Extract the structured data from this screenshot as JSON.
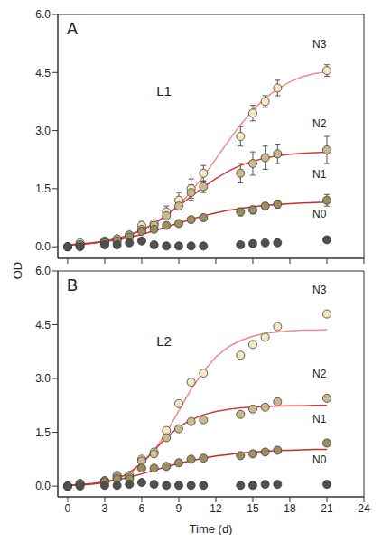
{
  "y_label": "OD",
  "chart_data": [
    {
      "type": "scatter",
      "title": "A",
      "annotation": "L1",
      "tick_labels": "y",
      "xlim": [
        -0.8,
        24
      ],
      "xticks": [
        0,
        3,
        6,
        9,
        12,
        15,
        18,
        21,
        24
      ],
      "ylim": [
        -0.3,
        6
      ],
      "yticks": [
        {
          "value": 0,
          "label": "0.0"
        },
        {
          "value": 1.5,
          "label": "1.5"
        },
        {
          "value": 3,
          "label": "3.0"
        },
        {
          "value": 4.5,
          "label": "4.5"
        },
        {
          "value": 6,
          "label": "6.0"
        }
      ],
      "x": [
        0,
        1,
        3,
        4,
        5,
        6,
        7,
        8,
        9,
        10,
        11,
        14,
        15,
        16,
        17,
        21
      ],
      "series": [
        {
          "name": "N3",
          "color": "#f3e8c2",
          "marker": "circle",
          "values": [
            0.0,
            0.1,
            0.15,
            0.2,
            0.3,
            0.55,
            0.6,
            0.9,
            1.2,
            1.5,
            1.9,
            2.85,
            3.45,
            3.75,
            4.1,
            4.55
          ],
          "errors": [
            0,
            0,
            0,
            0,
            0.05,
            0.1,
            0.05,
            0.15,
            0.2,
            0.25,
            0.2,
            0.25,
            0.2,
            0.15,
            0.2,
            0.15
          ],
          "fit": {
            "color": "#f08a8a",
            "line_style": "solid",
            "x": [
              0,
              1,
              2,
              3,
              4,
              5,
              6,
              7,
              8,
              9,
              10,
              11,
              12,
              13,
              14,
              15,
              16,
              17,
              18,
              19,
              20,
              21
            ],
            "values": [
              0.05,
              0.08,
              0.11,
              0.15,
              0.22,
              0.3,
              0.42,
              0.58,
              0.8,
              1.08,
              1.42,
              1.82,
              2.27,
              2.72,
              3.15,
              3.53,
              3.84,
              4.08,
              4.26,
              4.39,
              4.47,
              4.52
            ]
          }
        },
        {
          "name": "N2",
          "color": "#c9b98c",
          "marker": "circle",
          "values": [
            0.0,
            0.05,
            0.12,
            0.2,
            0.3,
            0.45,
            0.55,
            0.8,
            1.05,
            1.4,
            1.55,
            1.9,
            2.15,
            2.3,
            2.4,
            2.5
          ],
          "errors": [
            0,
            0,
            0,
            0,
            0.05,
            0.05,
            0.05,
            0.1,
            0.1,
            0.2,
            0.15,
            0.25,
            0.3,
            0.3,
            0.25,
            0.35
          ],
          "fit": {
            "color": "#d93b3b",
            "line_style": "solid",
            "x": [
              0,
              1,
              2,
              3,
              4,
              5,
              6,
              7,
              8,
              9,
              10,
              11,
              12,
              13,
              14,
              15,
              16,
              17,
              18,
              19,
              20,
              21
            ],
            "values": [
              0.04,
              0.06,
              0.09,
              0.14,
              0.2,
              0.3,
              0.43,
              0.6,
              0.81,
              1.05,
              1.3,
              1.54,
              1.76,
              1.95,
              2.1,
              2.21,
              2.29,
              2.35,
              2.39,
              2.41,
              2.43,
              2.44
            ]
          }
        },
        {
          "name": "N1",
          "color": "#9d8e5e",
          "marker": "circle",
          "values": [
            0.0,
            0.05,
            0.1,
            0.15,
            0.25,
            0.4,
            0.45,
            0.55,
            0.6,
            0.7,
            0.75,
            0.9,
            0.95,
            1.05,
            1.1,
            1.2
          ],
          "errors": [
            0,
            0,
            0,
            0,
            0.03,
            0.05,
            0.05,
            0.05,
            0.05,
            0.05,
            0.05,
            0.1,
            0.1,
            0.08,
            0.1,
            0.15
          ],
          "fit": {
            "color": "#c0302e",
            "line_style": "solid",
            "x": [
              0,
              1,
              2,
              3,
              4,
              5,
              6,
              7,
              8,
              9,
              10,
              11,
              12,
              13,
              14,
              15,
              16,
              17,
              18,
              19,
              20,
              21
            ],
            "values": [
              0.04,
              0.06,
              0.09,
              0.13,
              0.18,
              0.24,
              0.32,
              0.41,
              0.51,
              0.61,
              0.71,
              0.8,
              0.87,
              0.94,
              0.99,
              1.03,
              1.07,
              1.09,
              1.11,
              1.13,
              1.14,
              1.15
            ]
          }
        },
        {
          "name": "N0",
          "color": "#505050",
          "marker": "circle",
          "values": [
            0.0,
            0.0,
            0.05,
            0.05,
            0.1,
            0.15,
            0.05,
            0.02,
            0.02,
            0.02,
            0.02,
            0.05,
            0.08,
            0.1,
            0.1,
            0.18
          ],
          "errors": [
            0,
            0,
            0,
            0,
            0,
            0,
            0,
            0,
            0,
            0,
            0,
            0,
            0,
            0,
            0,
            0
          ]
        }
      ]
    },
    {
      "type": "scatter",
      "title": "B",
      "annotation": "L2",
      "x_label": "Time (d)",
      "xlim": [
        -0.8,
        24
      ],
      "xticks": [
        0,
        3,
        6,
        9,
        12,
        15,
        18,
        21,
        24
      ],
      "ylim": [
        -0.3,
        6
      ],
      "yticks": [
        {
          "value": 0,
          "label": "0.0"
        },
        {
          "value": 1.5,
          "label": "1.5"
        },
        {
          "value": 3,
          "label": "3.0"
        },
        {
          "value": 4.5,
          "label": "4.5"
        },
        {
          "value": 6,
          "label": "6.0"
        }
      ],
      "x": [
        0,
        1,
        3,
        4,
        5,
        6,
        7,
        8,
        9,
        10,
        11,
        14,
        15,
        16,
        17,
        21
      ],
      "series": [
        {
          "name": "N3",
          "color": "#f3e8c2",
          "marker": "circle",
          "values": [
            0.0,
            0.08,
            0.15,
            0.3,
            0.3,
            0.75,
            0.95,
            1.55,
            2.3,
            2.9,
            3.15,
            3.65,
            3.95,
            4.15,
            4.45,
            4.8
          ],
          "fit": {
            "color": "#f08a8a",
            "line_style": "solid",
            "x": [
              0,
              1,
              2,
              3,
              4,
              5,
              6,
              7,
              8,
              9,
              10,
              11,
              12,
              13,
              14,
              15,
              16,
              17,
              18,
              19,
              20,
              21
            ],
            "values": [
              0.02,
              0.04,
              0.07,
              0.12,
              0.2,
              0.35,
              0.6,
              0.98,
              1.5,
              2.1,
              2.7,
              3.2,
              3.6,
              3.88,
              4.06,
              4.18,
              4.26,
              4.3,
              4.33,
              4.35,
              4.35,
              4.36
            ]
          }
        },
        {
          "name": "N2",
          "color": "#c9b98c",
          "marker": "circle",
          "values": [
            0.0,
            0.05,
            0.15,
            0.25,
            0.25,
            0.7,
            0.9,
            1.35,
            1.6,
            1.8,
            1.85,
            2.0,
            2.15,
            2.2,
            2.35,
            2.45
          ],
          "fit": {
            "color": "#d93b3b",
            "line_style": "solid",
            "x": [
              0,
              1,
              2,
              3,
              4,
              5,
              6,
              7,
              8,
              9,
              10,
              11,
              12,
              13,
              14,
              15,
              16,
              17,
              18,
              19,
              20,
              21
            ],
            "values": [
              0.02,
              0.03,
              0.05,
              0.1,
              0.2,
              0.38,
              0.65,
              1.0,
              1.35,
              1.65,
              1.85,
              1.99,
              2.08,
              2.14,
              2.18,
              2.2,
              2.22,
              2.23,
              2.24,
              2.24,
              2.25,
              2.25
            ]
          }
        },
        {
          "name": "N1",
          "color": "#9d8e5e",
          "marker": "circle",
          "values": [
            0.0,
            0.05,
            0.12,
            0.2,
            0.2,
            0.5,
            0.5,
            0.55,
            0.65,
            0.75,
            0.78,
            0.85,
            0.9,
            0.95,
            1.0,
            1.2
          ],
          "fit": {
            "color": "#c0302e",
            "line_style": "solid",
            "x": [
              0,
              1,
              2,
              3,
              4,
              5,
              6,
              7,
              8,
              9,
              10,
              11,
              12,
              13,
              14,
              15,
              16,
              17,
              18,
              19,
              20,
              21
            ],
            "values": [
              0.02,
              0.04,
              0.07,
              0.11,
              0.17,
              0.25,
              0.34,
              0.44,
              0.54,
              0.63,
              0.71,
              0.78,
              0.84,
              0.88,
              0.92,
              0.95,
              0.97,
              0.99,
              1.0,
              1.01,
              1.02,
              1.02
            ]
          }
        },
        {
          "name": "N0",
          "color": "#505050",
          "marker": "circle",
          "values": [
            0.0,
            0.0,
            0.02,
            0.02,
            0.05,
            0.1,
            0.05,
            0.02,
            0.02,
            0.02,
            0.02,
            0.02,
            0.02,
            0.05,
            0.05,
            0.05
          ]
        }
      ]
    }
  ]
}
